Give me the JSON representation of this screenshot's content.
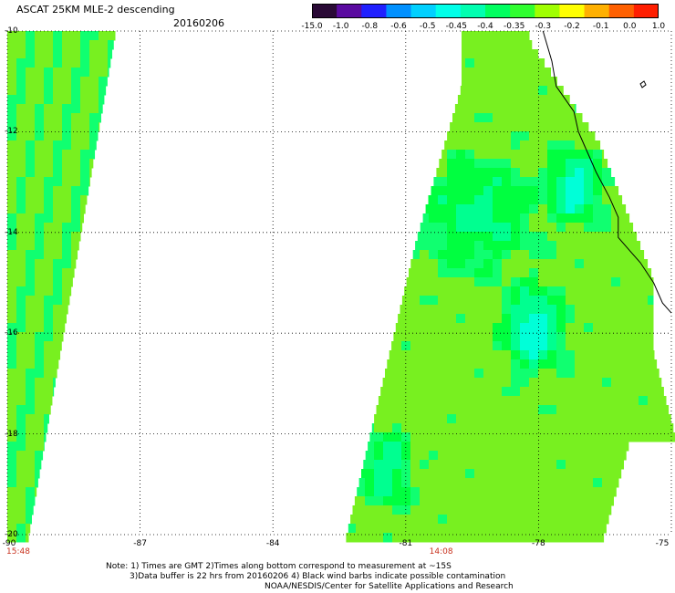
{
  "header": {
    "title": "ASCAT 25KM MLE-2 descending",
    "date": "20160206"
  },
  "colorbar": {
    "labels": [
      "-15.0",
      "-1.0",
      "-0.8",
      "-0.6",
      "-0.5",
      "-0.45",
      "-0.4",
      "-0.35",
      "-0.3",
      "-0.2",
      "-0.1",
      "0.0",
      "1.0"
    ],
    "colors": [
      "#2a0a36",
      "#5a0aa0",
      "#2020ff",
      "#0090ff",
      "#00d0ff",
      "#00ffe8",
      "#00ffb0",
      "#00ff60",
      "#30ff30",
      "#a0ff00",
      "#ffff00",
      "#ffb000",
      "#ff6000",
      "#ff1e00"
    ]
  },
  "map": {
    "lon_range": [
      -90,
      -75
    ],
    "lat_range": [
      -20,
      -10
    ],
    "lon_ticks": [
      "-90",
      "-87",
      "-84",
      "-81",
      "-78",
      "-75"
    ],
    "lat_ticks": [
      "-10",
      "-12",
      "-14",
      "-16",
      "-18",
      "-20"
    ],
    "times": [
      {
        "label": "15:48",
        "lon": -90
      },
      {
        "label": "14:08",
        "lon": -80.2
      }
    ],
    "swath_colors": {
      "base": "#78f020",
      "mid": "#00ff40",
      "strong": "#00ff90",
      "peak": "#00ffd8",
      "edge": "#10ff70"
    },
    "coast_color": "#000000",
    "grid_style": "dotted"
  },
  "footer": {
    "line1": "Note: 1) Times are GMT 2)Times along bottom correspond to measurement at ~15S",
    "line2": "3)Data buffer is 22 hrs from 20160206 4) Black wind barbs indicate possible contamination",
    "line3": "NOAA/NESDIS/Center for Satellite Applications and Research"
  }
}
